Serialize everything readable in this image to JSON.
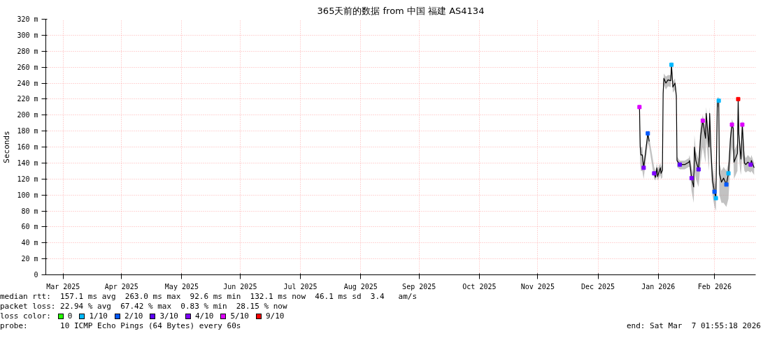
{
  "chart_data": {
    "type": "line",
    "title": "365天前的数据 from 中国 福建 AS4134",
    "ylabel": "Seconds",
    "xlim": [
      "2025-03-07T01:55",
      "2026-03-07T01:55"
    ],
    "xticks": [
      {
        "value": "2025-03-16",
        "label": "Mar 2025"
      },
      {
        "value": "2025-04-15",
        "label": "Apr 2025"
      },
      {
        "value": "2025-05-16",
        "label": "May 2025"
      },
      {
        "value": "2025-06-15",
        "label": "Jun 2025"
      },
      {
        "value": "2025-07-16",
        "label": "Jul 2025"
      },
      {
        "value": "2025-08-16",
        "label": "Aug 2025"
      },
      {
        "value": "2025-09-15",
        "label": "Sep 2025"
      },
      {
        "value": "2025-10-16",
        "label": "Oct 2025"
      },
      {
        "value": "2025-11-15",
        "label": "Nov 2025"
      },
      {
        "value": "2025-12-16",
        "label": "Dec 2025"
      },
      {
        "value": "2026-01-16",
        "label": "Jan 2026"
      },
      {
        "value": "2026-02-14",
        "label": "Feb 2026"
      }
    ],
    "ylim": [
      0,
      320
    ],
    "yticks": [
      0,
      {
        "value": 20,
        "label": "20 m"
      },
      {
        "value": 40,
        "label": "40 m"
      },
      {
        "value": 60,
        "label": "60 m"
      },
      {
        "value": 80,
        "label": "80 m"
      },
      {
        "value": 100,
        "label": "100 m"
      },
      {
        "value": 120,
        "label": "120 m"
      },
      {
        "value": 140,
        "label": "140 m"
      },
      {
        "value": 160,
        "label": "160 m"
      },
      {
        "value": 180,
        "label": "180 m"
      },
      {
        "value": 200,
        "label": "200 m"
      },
      {
        "value": 220,
        "label": "220 m"
      },
      {
        "value": 240,
        "label": "240 m"
      },
      {
        "value": 260,
        "label": "260 m"
      },
      {
        "value": 280,
        "label": "280 m"
      },
      {
        "value": 300,
        "label": "300 m"
      },
      {
        "value": 320,
        "label": "320 m"
      }
    ],
    "grid": true,
    "legend": "bottom",
    "legend_title": "loss color:",
    "series": [
      {
        "color": "#000000",
        "x": [
          "2026-01-06T08:00",
          "2026-01-06T17:00",
          "2026-01-07T02:00",
          "2026-01-07T19:00",
          "2026-01-08T12:00",
          "2026-01-10T15:00",
          "2026-01-11T08:00",
          "2026-01-12T19:00",
          "2026-01-13T21:00",
          "2026-01-14T14:00",
          "2026-01-15T07:00",
          "2026-01-15T15:00",
          "2026-01-17T02:00",
          "2026-01-17T10:00",
          "2026-01-18T03:00",
          "2026-01-18T12:00",
          "2026-01-18T21:00",
          "2026-01-19T22:00",
          "2026-01-21T00:00",
          "2026-01-22T10:00",
          "2026-01-22T19:00",
          "2026-01-23T12:00",
          "2026-01-24T14:00",
          "2026-01-25T07:00",
          "2026-01-25T15:00",
          "2026-01-27T02:00",
          "2026-01-29T14:00",
          "2026-01-31T17:00",
          "2026-02-01T02:00",
          "2026-02-02T03:00",
          "2026-02-03T05:00",
          "2026-02-03T14:00",
          "2026-02-04T07:00",
          "2026-02-05T17:00",
          "2026-02-06T19:00",
          "2026-02-07T21:00",
          "2026-02-09T07:00",
          "2026-02-09T15:00",
          "2026-02-11T02:00",
          "2026-02-11T10:00",
          "2026-02-12T03:00",
          "2026-02-12T21:00",
          "2026-02-13T22:00",
          "2026-02-14T15:00",
          "2026-02-15T09:00",
          "2026-02-16T02:00",
          "2026-02-16T10:00",
          "2026-02-17T12:00",
          "2026-02-18T14:00",
          "2026-02-20T00:00",
          "2026-02-21T02:00",
          "2026-02-22T03:00",
          "2026-02-22T21:00",
          "2026-02-23T14:00",
          "2026-02-23T22:00",
          "2026-02-25T17:00",
          "2026-02-26T02:00",
          "2026-02-26T10:00",
          "2026-02-27T03:00",
          "2026-02-27T12:00",
          "2026-02-28T05:00",
          "2026-03-01T07:00",
          "2026-03-02T00:00",
          "2026-03-03T02:00",
          "2026-03-04T12:00",
          "2026-03-04T21:00",
          "2026-03-06T07:00"
        ],
        "values": [
          210,
          160,
          150,
          150,
          134,
          177,
          167,
          null,
          127,
          122,
          134,
          123,
          134,
          127,
          131,
          227,
          246,
          240,
          244,
          243,
          263,
          235,
          240,
          224,
          143,
          138,
          138,
          141,
          143,
          121,
          110,
          160,
          143,
          132,
          174,
          193,
          171,
          202,
          160,
          202,
          154,
          118,
          104,
          96,
          218,
          218,
          127,
          116,
          121,
          113,
          127,
          171,
          188,
          183,
          141,
          152,
          220,
          176,
          155,
          145,
          188,
          140,
          138,
          141,
          138,
          143,
          134
        ],
        "lower": [
          180,
          140,
          130,
          130,
          120,
          165,
          160,
          null,
          120,
          118,
          125,
          118,
          125,
          120,
          122,
          220,
          238,
          232,
          236,
          235,
          255,
          228,
          232,
          218,
          135,
          132,
          132,
          135,
          135,
          105,
          90,
          130,
          120,
          110,
          140,
          160,
          140,
          170,
          130,
          170,
          130,
          100,
          85,
          80,
          210,
          210,
          100,
          90,
          90,
          85,
          95,
          140,
          160,
          150,
          120,
          130,
          200,
          150,
          130,
          125,
          150,
          130,
          128,
          130,
          128,
          130,
          125
        ],
        "upper": [
          220,
          170,
          160,
          160,
          140,
          180,
          172,
          null,
          135,
          130,
          140,
          132,
          140,
          135,
          138,
          235,
          252,
          248,
          250,
          250,
          268,
          242,
          246,
          230,
          148,
          143,
          143,
          146,
          150,
          135,
          125,
          175,
          155,
          145,
          190,
          200,
          185,
          210,
          175,
          210,
          165,
          135,
          120,
          110,
          222,
          222,
          140,
          130,
          135,
          130,
          140,
          180,
          195,
          190,
          155,
          165,
          225,
          185,
          165,
          155,
          195,
          150,
          146,
          150,
          146,
          150,
          140
        ]
      },
      {
        "type": "scatter",
        "name": "0",
        "color": "#26ff00",
        "marker": "square"
      },
      {
        "type": "scatter",
        "name": "1/10",
        "color": "#00b8ff",
        "marker": "square",
        "x": [
          "2026-01-22T19:00",
          "2026-02-14T15:00",
          "2026-02-16T02:00",
          "2026-02-21T02:00"
        ],
        "values": [
          263,
          96,
          218,
          127
        ]
      },
      {
        "type": "scatter",
        "name": "2/10",
        "color": "#0059ff",
        "marker": "square",
        "x": [
          "2026-01-10T15:00",
          "2026-02-13T22:00",
          "2026-02-20T00:00"
        ],
        "values": [
          177,
          104,
          113
        ]
      },
      {
        "type": "scatter",
        "name": "3/10",
        "color": "#5e00ff",
        "marker": "square",
        "x": [
          "2026-01-27T02:00",
          "2026-02-05T17:00"
        ],
        "values": [
          138,
          132
        ]
      },
      {
        "type": "scatter",
        "name": "4/10",
        "color": "#7e00ff",
        "marker": "square",
        "x": [
          "2026-01-08T12:00",
          "2026-01-13T21:00",
          "2026-02-02T03:00",
          "2026-03-04T12:00"
        ],
        "values": [
          134,
          127,
          121,
          138
        ]
      },
      {
        "type": "scatter",
        "name": "5/10",
        "color": "#dd00ff",
        "marker": "square",
        "x": [
          "2026-01-06T08:00",
          "2026-02-07T21:00",
          "2026-02-22T21:00",
          "2026-02-28T05:00"
        ],
        "values": [
          210,
          193,
          188,
          188
        ]
      },
      {
        "type": "scatter",
        "name": "9/10",
        "color": "#ff0000",
        "marker": "square",
        "x": [
          "2026-02-26T02:00"
        ],
        "values": [
          220
        ]
      }
    ],
    "annotations": [
      "median rtt:  157.1 ms avg  263.0 ms max  92.6 ms min  132.1 ms now  46.1 ms sd  3.4   am/s",
      "packet loss: 22.94 % avg  67.42 % max  0.83 % min  28.15 % now",
      "probe:       10 ICMP Echo Pings (64 Bytes) every 60s",
      "end: Sat Mar  7 01:55:18 2026"
    ]
  }
}
